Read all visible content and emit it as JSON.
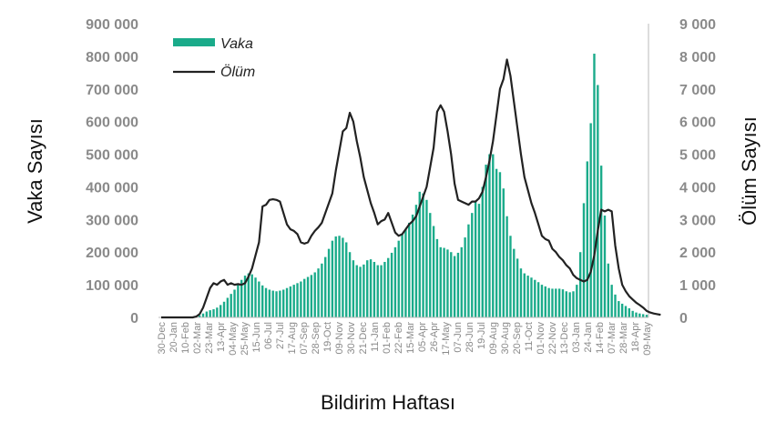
{
  "chart_data": {
    "type": "bar",
    "xlabel": "Bildirim Haftası",
    "ylabel_left": "Vaka Sayısı",
    "ylabel_right": "Ölüm Sayısı",
    "ylim_left": [
      0,
      900000
    ],
    "ylim_right": [
      0,
      9000
    ],
    "yticks_left": [
      "0",
      "100 000",
      "200 000",
      "300 000",
      "400 000",
      "500 000",
      "600 000",
      "700 000",
      "800 000",
      "900 000"
    ],
    "yticks_right": [
      "0",
      "1 000",
      "2 000",
      "3 000",
      "4 000",
      "5 000",
      "6 000",
      "7 000",
      "8 000",
      "9 000"
    ],
    "legend": {
      "position": "top-left",
      "entries": [
        "Vaka",
        "Ölüm"
      ]
    },
    "colors": {
      "bars": "#1aab8a",
      "line": "#222222",
      "ticks": "#8a8a8a"
    },
    "grid": false,
    "x_tick_labels": [
      "30-Dec",
      "20-Jan",
      "10-Feb",
      "02-Mar",
      "23-Mar",
      "13-Apr",
      "04-May",
      "25-May",
      "15-Jun",
      "06-Jul",
      "27-Jul",
      "17-Aug",
      "07-Sep",
      "28-Sep",
      "19-Oct",
      "09-Nov",
      "30-Nov",
      "21-Dec",
      "11-Jan",
      "01-Feb",
      "22-Feb",
      "15-Mar",
      "05-Apr",
      "26-Apr",
      "17-May",
      "07-Jun",
      "28-Jun",
      "19-Jul",
      "09-Aug",
      "30-Aug",
      "20-Sep",
      "11-Oct",
      "01-Nov",
      "22-Nov",
      "13-Dec",
      "03-Jan",
      "24-Jan",
      "14-Feb",
      "07-Mar",
      "28-Mar",
      "18-Apr",
      "09-May"
    ],
    "series": [
      {
        "name": "Vaka",
        "type": "bar",
        "axis": "left",
        "values": [
          0,
          0,
          0,
          0,
          0,
          0,
          0,
          0,
          0,
          0,
          2000,
          6000,
          12000,
          18000,
          22000,
          25000,
          30000,
          38000,
          48000,
          60000,
          72000,
          85000,
          100000,
          115000,
          128000,
          135000,
          132000,
          122000,
          110000,
          98000,
          90000,
          85000,
          82000,
          80000,
          82000,
          85000,
          90000,
          95000,
          100000,
          105000,
          110000,
          118000,
          124000,
          130000,
          138000,
          150000,
          165000,
          185000,
          210000,
          235000,
          248000,
          250000,
          244000,
          230000,
          200000,
          175000,
          160000,
          155000,
          162000,
          175000,
          178000,
          170000,
          160000,
          160000,
          170000,
          182000,
          198000,
          215000,
          235000,
          255000,
          270000,
          290000,
          315000,
          345000,
          385000,
          380000,
          360000,
          320000,
          280000,
          240000,
          215000,
          213000,
          208000,
          200000,
          188000,
          198000,
          215000,
          245000,
          285000,
          320000,
          355000,
          348000,
          400000,
          468000,
          500000,
          500000,
          455000,
          445000,
          395000,
          310000,
          250000,
          210000,
          180000,
          150000,
          135000,
          128000,
          122000,
          115000,
          108000,
          100000,
          95000,
          90000,
          88000,
          88000,
          88000,
          86000,
          80000,
          77000,
          80000,
          100000,
          200000,
          350000,
          478000,
          595000,
          808000,
          712000,
          465000,
          312000,
          165000,
          100000,
          70000,
          50000,
          42000,
          35000,
          28000,
          20000,
          15000,
          12000,
          10000,
          8000
        ]
      },
      {
        "name": "Ölüm",
        "type": "line",
        "axis": "right",
        "values": [
          0,
          0,
          0,
          0,
          0,
          0,
          0,
          0,
          0,
          0,
          25,
          100,
          300,
          600,
          900,
          1050,
          1000,
          1100,
          1150,
          1000,
          1050,
          1000,
          1020,
          1000,
          1050,
          1250,
          1500,
          1900,
          2300,
          3400,
          3450,
          3600,
          3620,
          3600,
          3550,
          3200,
          2850,
          2700,
          2650,
          2550,
          2300,
          2260,
          2300,
          2500,
          2650,
          2760,
          2900,
          3200,
          3500,
          3800,
          4500,
          5100,
          5700,
          5800,
          6270,
          6000,
          5400,
          4900,
          4300,
          3900,
          3500,
          3200,
          2850,
          2950,
          3000,
          3200,
          2900,
          2600,
          2500,
          2550,
          2700,
          2850,
          2950,
          3100,
          3400,
          3700,
          4000,
          4600,
          5200,
          6300,
          6500,
          6300,
          5700,
          5000,
          4100,
          3600,
          3550,
          3500,
          3450,
          3550,
          3550,
          3650,
          3850,
          4300,
          4800,
          5400,
          6200,
          7000,
          7300,
          7900,
          7400,
          6600,
          5800,
          5000,
          4300,
          3900,
          3500,
          3200,
          2850,
          2500,
          2400,
          2350,
          2100,
          2000,
          1850,
          1750,
          1600,
          1500,
          1300,
          1200,
          1150,
          1100,
          1150,
          1400,
          1900,
          2650,
          3300,
          3250,
          3300,
          3250,
          2200,
          1500,
          1000,
          800,
          650,
          550,
          450,
          380,
          300,
          200,
          150,
          120,
          100,
          80
        ]
      }
    ]
  }
}
